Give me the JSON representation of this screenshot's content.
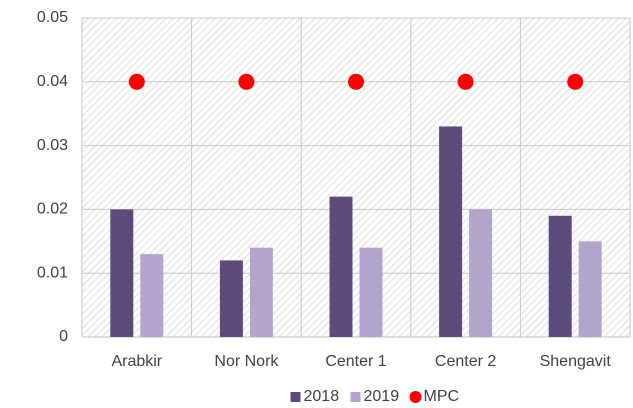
{
  "chart_data": {
    "type": "bar",
    "categories": [
      "Arabkir",
      "Nor Nork",
      "Center 1",
      "Center 2",
      "Shengavit"
    ],
    "series": [
      {
        "name": "2018",
        "color": "#5c4a7b",
        "marker": "bar",
        "values": [
          0.02,
          0.012,
          0.022,
          0.033,
          0.019
        ]
      },
      {
        "name": "2019",
        "color": "#b3a4cb",
        "marker": "bar",
        "values": [
          0.013,
          0.014,
          0.014,
          0.02,
          0.015
        ]
      },
      {
        "name": "MPC",
        "color": "#ff0000",
        "marker": "dot",
        "values": [
          0.04,
          0.04,
          0.04,
          0.04,
          0.04
        ]
      }
    ],
    "ylim": [
      0,
      0.05
    ],
    "yticks": [
      0,
      0.01,
      0.02,
      0.03,
      0.04,
      0.05
    ],
    "grid": true,
    "legend": "bottom"
  }
}
